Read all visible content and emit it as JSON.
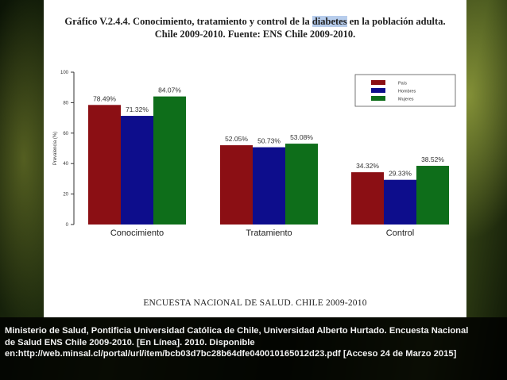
{
  "chart_data": {
    "type": "bar",
    "title_line1_a": "Gráfico V.2.4.4. Conocimiento, tratamiento y control de la ",
    "title_line1_hl": "diabetes",
    "title_line1_b": " en la población adulta.",
    "title_line2": "Chile 2009-2010. Fuente: ENS Chile 2009-2010.",
    "ylabel": "Prevalencia (%)",
    "ylim": [
      0,
      100
    ],
    "yticks": [
      "0",
      "20",
      "40",
      "60",
      "80",
      "100"
    ],
    "categories": [
      "Conocimiento",
      "Tratamiento",
      "Control"
    ],
    "series": [
      {
        "name": "País",
        "color": "#8b0f14",
        "values": [
          78.49,
          52.05,
          34.32
        ],
        "labels": [
          "78.49%",
          "52.05%",
          "34.32%"
        ]
      },
      {
        "name": "Hombres",
        "color": "#0d0d8c",
        "values": [
          71.32,
          50.73,
          29.33
        ],
        "labels": [
          "71.32%",
          "50.73%",
          "29.33%"
        ]
      },
      {
        "name": "Mujeres",
        "color": "#0e6e1a",
        "values": [
          84.07,
          53.08,
          38.52
        ],
        "labels": [
          "84.07%",
          "53.08%",
          "38.52%"
        ]
      }
    ],
    "legend_position": "top-right",
    "grid": false,
    "footer": "ENCUESTA NACIONAL DE SALUD. CHILE 2009-2010"
  },
  "caption": {
    "text": "Ministerio de Salud, Pontificia Universidad Católica de Chile, Universidad Alberto Hurtado. Encuesta Nacional de Salud ENS Chile 2009-2010. [En Línea]. 2010. Disponible en:http://web.minsal.cl/portal/url/item/bcb03d7bc28b64dfe040010165012d23.pdf [Acceso 24 de Marzo 2015]"
  }
}
